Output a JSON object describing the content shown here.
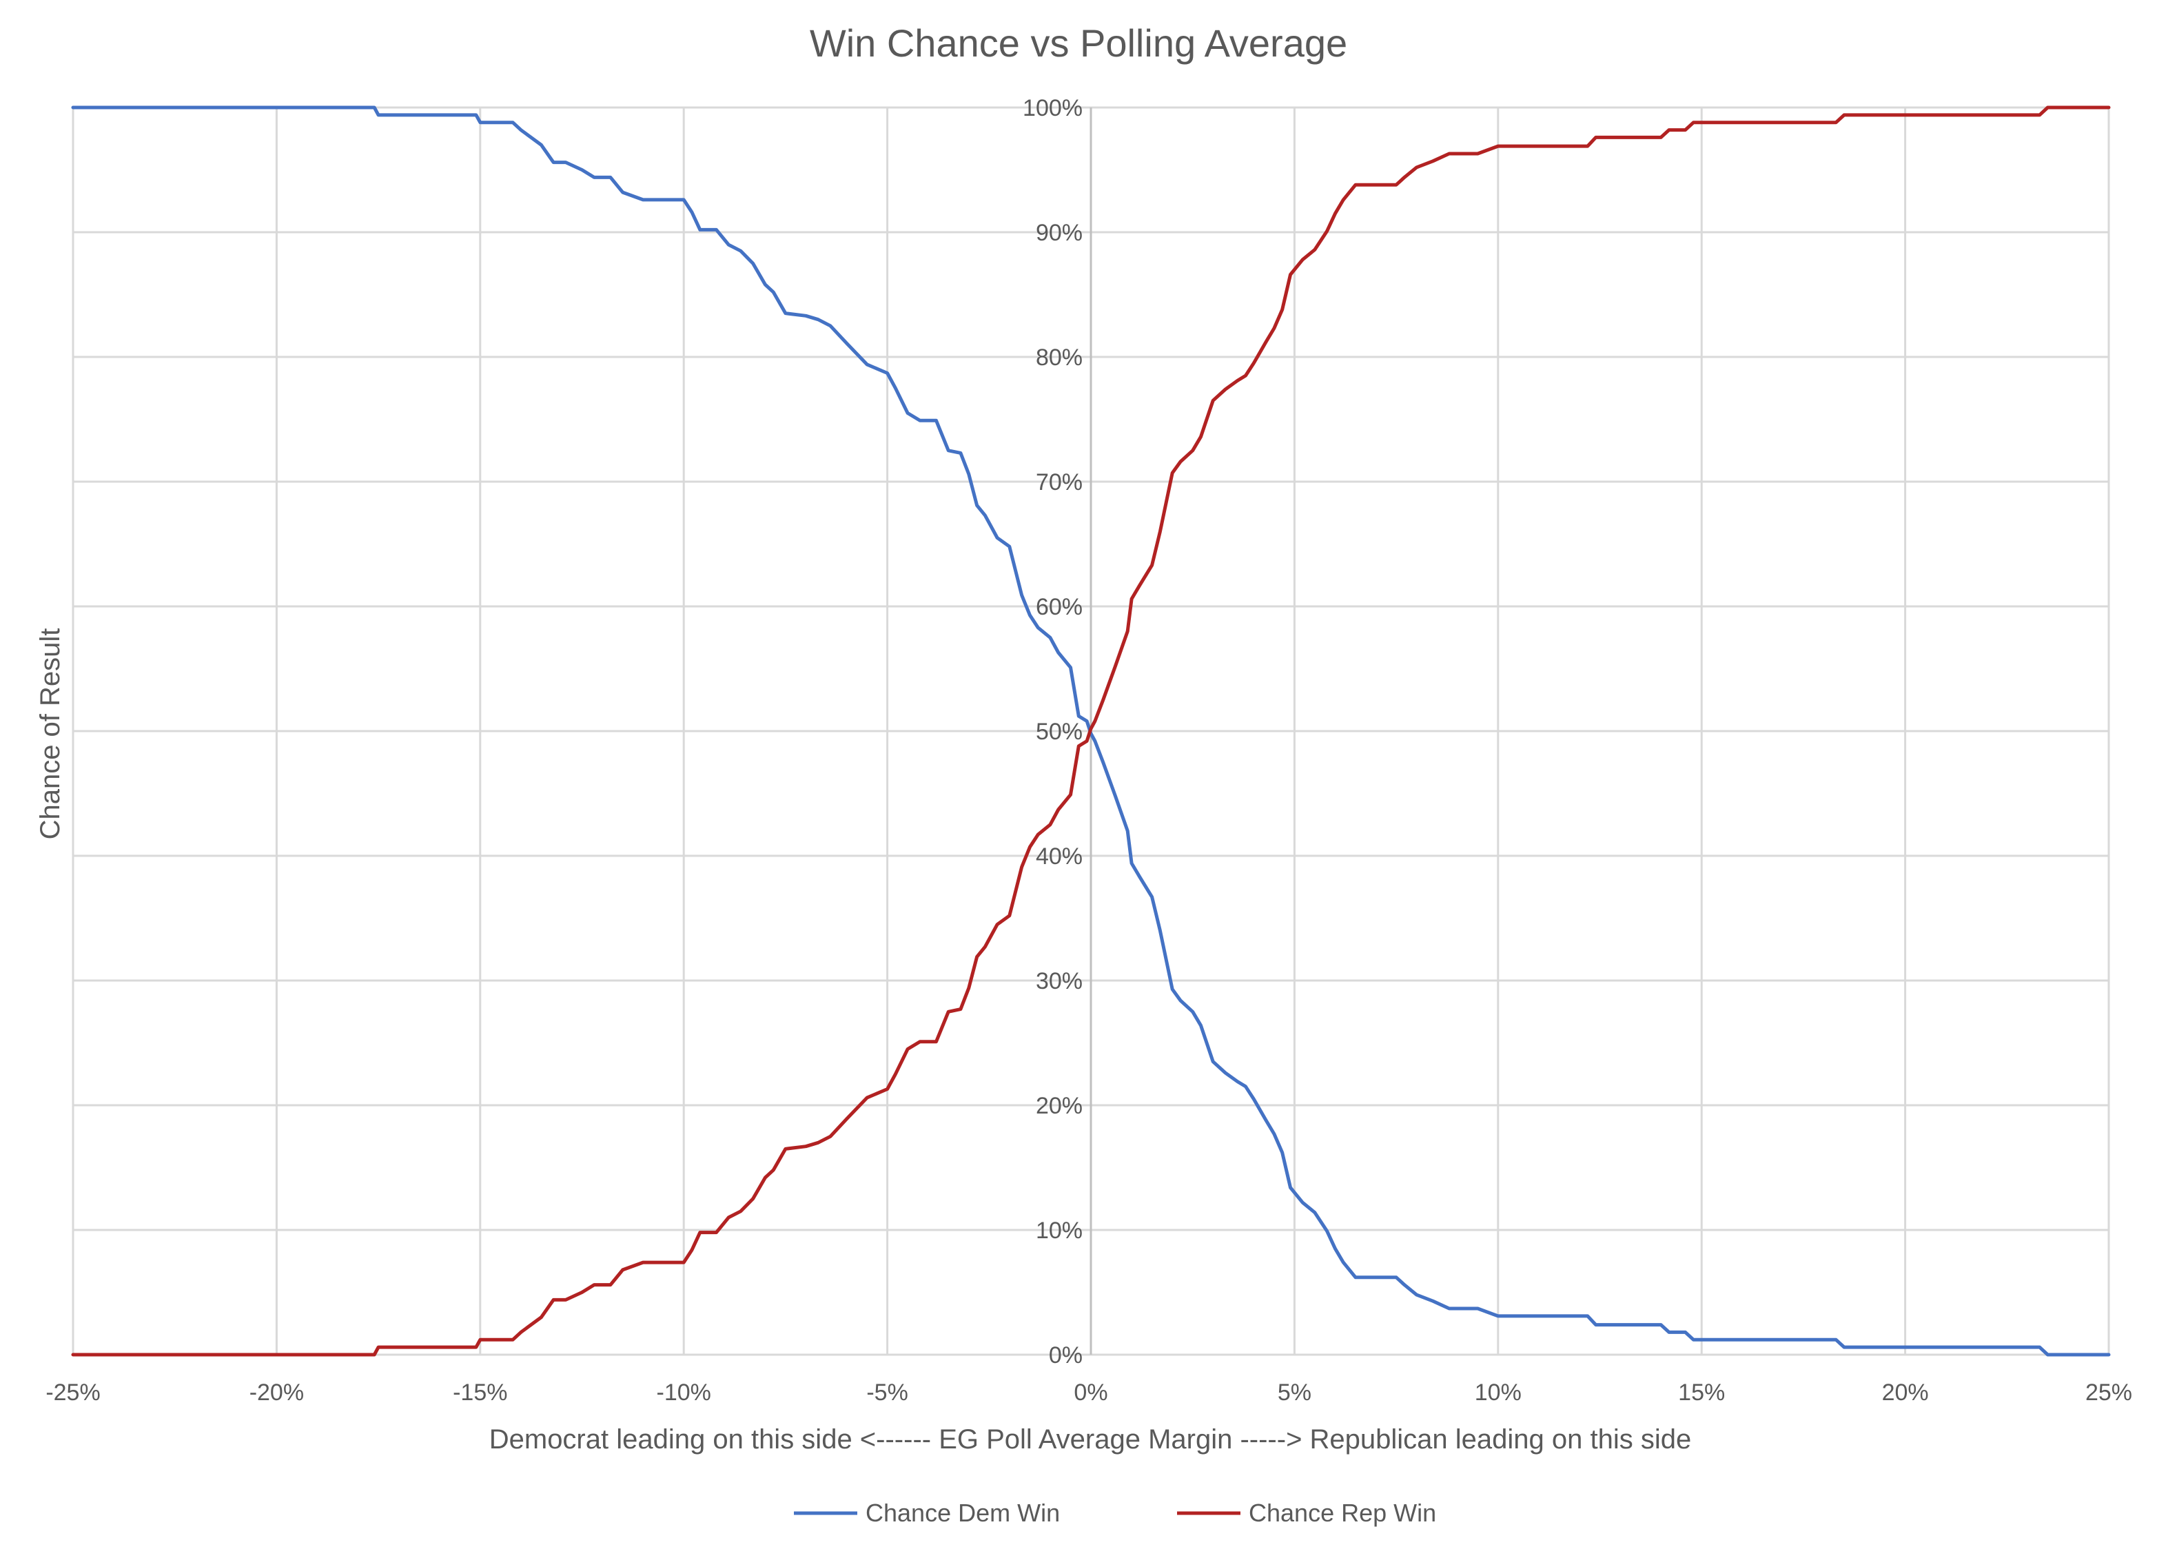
{
  "chart_data": {
    "type": "line",
    "title": "Win Chance vs Polling Average",
    "xlabel": "Democrat leading on this side <------ EG Poll Average Margin -----> Republican leading on this side",
    "ylabel": "Chance of Result",
    "xlim": [
      -25,
      25
    ],
    "ylim": [
      0,
      100
    ],
    "x_ticks": [
      -25,
      -20,
      -15,
      -10,
      -5,
      0,
      5,
      10,
      15,
      20,
      25
    ],
    "x_tick_labels": [
      "-25%",
      "-20%",
      "-15%",
      "-10%",
      "-5%",
      "0%",
      "5%",
      "10%",
      "15%",
      "20%",
      "25%"
    ],
    "y_ticks": [
      0,
      10,
      20,
      30,
      40,
      50,
      60,
      70,
      80,
      90,
      100
    ],
    "y_tick_labels": [
      "0%",
      "10%",
      "20%",
      "30%",
      "40%",
      "50%",
      "60%",
      "70%",
      "80%",
      "90%",
      "100%"
    ],
    "grid": true,
    "legend_position": "bottom",
    "series": [
      {
        "name": "Chance Dem Win",
        "color": "#4472c4",
        "x": [
          -25,
          -17.6,
          -17.5,
          -15.1,
          -15,
          -14.2,
          -14,
          -13.5,
          -13.2,
          -12.9,
          -12.5,
          -12.2,
          -11.8,
          -11.5,
          -11,
          -10.5,
          -10,
          -9.8,
          -9.6,
          -9.2,
          -8.9,
          -8.6,
          -8.3,
          -8.0,
          -7.8,
          -7.5,
          -7.0,
          -6.7,
          -6.4,
          -6.0,
          -5.5,
          -5.0,
          -4.8,
          -4.5,
          -4.2,
          -3.8,
          -3.5,
          -3.2,
          -3.0,
          -2.8,
          -2.6,
          -2.3,
          -2.0,
          -1.7,
          -1.5,
          -1.3,
          -1.0,
          -0.8,
          -0.5,
          -0.3,
          -0.1,
          0.0,
          0.1,
          0.3,
          0.6,
          0.9,
          1.0,
          1.2,
          1.5,
          1.7,
          2.0,
          2.2,
          2.5,
          2.7,
          3.0,
          3.3,
          3.6,
          3.8,
          4.0,
          4.3,
          4.5,
          4.7,
          4.9,
          5.2,
          5.5,
          5.8,
          6.0,
          6.2,
          6.5,
          7.0,
          7.5,
          7.7,
          8.0,
          8.4,
          8.8,
          9.5,
          10,
          11,
          12.2,
          12.4,
          14,
          14.2,
          14.6,
          14.8,
          16,
          18.3,
          18.5,
          20,
          23.3,
          23.5,
          25
        ],
        "values": [
          100,
          100,
          99.4,
          99.4,
          98.8,
          98.8,
          98.2,
          97,
          95.6,
          95.6,
          95,
          94.4,
          94.4,
          93.2,
          92.6,
          92.6,
          92.6,
          91.6,
          90.2,
          90.2,
          89,
          88.5,
          87.5,
          85.8,
          85.2,
          83.5,
          83.3,
          83,
          82.5,
          81.1,
          79.4,
          78.7,
          77.5,
          75.5,
          74.9,
          74.9,
          72.5,
          72.3,
          70.6,
          68.1,
          67.3,
          65.5,
          64.8,
          60.9,
          59.3,
          58.3,
          57.5,
          56.3,
          55.1,
          51.2,
          50.8,
          49.8,
          49.2,
          47.5,
          44.8,
          42,
          39.4,
          38.3,
          36.7,
          34,
          29.3,
          28.4,
          27.5,
          26.4,
          23.5,
          22.6,
          21.9,
          21.5,
          20.5,
          18.8,
          17.7,
          16.2,
          13.4,
          12.2,
          11.4,
          9.9,
          8.5,
          7.4,
          6.2,
          6.2,
          6.2,
          5.6,
          4.8,
          4.3,
          3.7,
          3.7,
          3.1,
          3.1,
          3.1,
          2.4,
          2.4,
          1.8,
          1.8,
          1.2,
          1.2,
          1.2,
          0.6,
          0.6,
          0.6,
          0,
          0
        ]
      },
      {
        "name": "Chance Rep Win",
        "color": "#b22222",
        "x": [
          -25,
          -17.6,
          -17.5,
          -15.1,
          -15,
          -14.2,
          -14,
          -13.5,
          -13.2,
          -12.9,
          -12.5,
          -12.2,
          -11.8,
          -11.5,
          -11,
          -10.5,
          -10,
          -9.8,
          -9.6,
          -9.2,
          -8.9,
          -8.6,
          -8.3,
          -8.0,
          -7.8,
          -7.5,
          -7.0,
          -6.7,
          -6.4,
          -6.0,
          -5.5,
          -5.0,
          -4.8,
          -4.5,
          -4.2,
          -3.8,
          -3.5,
          -3.2,
          -3.0,
          -2.8,
          -2.6,
          -2.3,
          -2.0,
          -1.7,
          -1.5,
          -1.3,
          -1.0,
          -0.8,
          -0.5,
          -0.3,
          -0.1,
          0.0,
          0.1,
          0.3,
          0.6,
          0.9,
          1.0,
          1.2,
          1.5,
          1.7,
          2.0,
          2.2,
          2.5,
          2.7,
          3.0,
          3.3,
          3.6,
          3.8,
          4.0,
          4.3,
          4.5,
          4.7,
          4.9,
          5.2,
          5.5,
          5.8,
          6.0,
          6.2,
          6.5,
          7.0,
          7.5,
          7.7,
          8.0,
          8.4,
          8.8,
          9.5,
          10,
          11,
          12.2,
          12.4,
          14,
          14.2,
          14.6,
          14.8,
          16,
          18.3,
          18.5,
          20,
          23.3,
          23.5,
          25
        ],
        "values": [
          0,
          0,
          0.6,
          0.6,
          1.2,
          1.2,
          1.8,
          3,
          4.4,
          4.4,
          5,
          5.6,
          5.6,
          6.8,
          7.4,
          7.4,
          7.4,
          8.4,
          9.8,
          9.8,
          11,
          11.5,
          12.5,
          14.2,
          14.8,
          16.5,
          16.7,
          17,
          17.5,
          18.9,
          20.6,
          21.3,
          22.5,
          24.5,
          25.1,
          25.1,
          27.5,
          27.7,
          29.4,
          31.9,
          32.7,
          34.5,
          35.2,
          39.1,
          40.7,
          41.7,
          42.5,
          43.7,
          44.9,
          48.8,
          49.2,
          50.2,
          50.8,
          52.5,
          55.2,
          58,
          60.6,
          61.7,
          63.3,
          66,
          70.7,
          71.6,
          72.5,
          73.6,
          76.5,
          77.4,
          78.1,
          78.5,
          79.5,
          81.2,
          82.3,
          83.8,
          86.6,
          87.8,
          88.6,
          90.1,
          91.5,
          92.6,
          93.8,
          93.8,
          93.8,
          94.4,
          95.2,
          95.7,
          96.3,
          96.3,
          96.9,
          96.9,
          96.9,
          97.6,
          97.6,
          98.2,
          98.2,
          98.8,
          98.8,
          98.8,
          99.4,
          99.4,
          99.4,
          100,
          100
        ]
      }
    ]
  }
}
